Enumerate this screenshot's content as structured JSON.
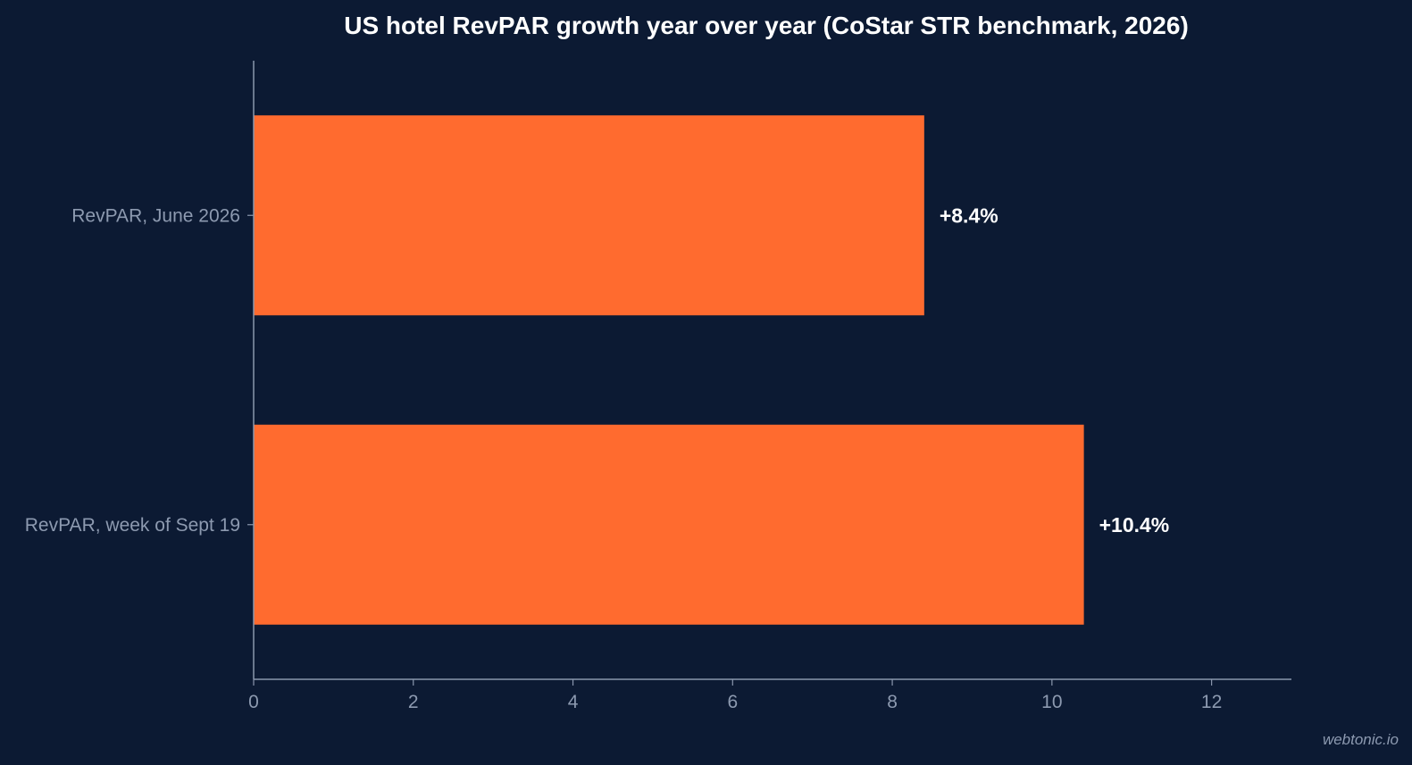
{
  "chart_data": {
    "type": "bar",
    "orientation": "horizontal",
    "title": "US hotel RevPAR growth year over year (CoStar STR benchmark, 2026)",
    "categories": [
      "RevPAR, June 2026",
      "RevPAR, week of Sept 19"
    ],
    "values": [
      8.4,
      10.4
    ],
    "data_labels": [
      "+8.4%",
      "+10.4%"
    ],
    "xlabel": "",
    "ylabel": "",
    "xlim": [
      0,
      13
    ],
    "x_ticks": [
      0,
      2,
      4,
      6,
      8,
      10,
      12
    ],
    "grid": false,
    "legend": "none"
  },
  "colors": {
    "background": "#0c1a33",
    "bar": "#ff6b2f",
    "axis": "#8a97ad",
    "text_muted": "#8d9ab0",
    "text_strong": "#ffffff"
  },
  "footer": {
    "watermark": "webtonic.io"
  }
}
